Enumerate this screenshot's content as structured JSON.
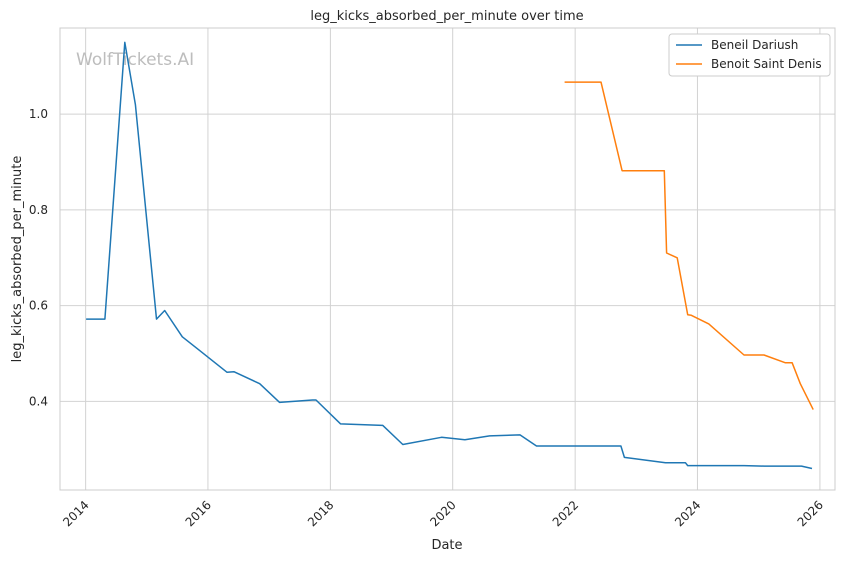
{
  "chart_data": {
    "type": "line",
    "title": "leg_kicks_absorbed_per_minute over time",
    "xlabel": "Date",
    "ylabel": "leg_kicks_absorbed_per_minute",
    "xlim": [
      "2013-08-01",
      "2026-04-01"
    ],
    "ylim": [
      0.215,
      1.18
    ],
    "x_ticks": [
      "2014",
      "2016",
      "2018",
      "2020",
      "2022",
      "2024",
      "2026"
    ],
    "y_ticks": [
      0.4,
      0.6,
      0.8,
      1.0
    ],
    "y_tick_labels": [
      "0.4",
      "0.6",
      "0.8",
      "1.0"
    ],
    "grid": true,
    "legend_position": "top-right",
    "watermark": "WolfTickets.AI",
    "series": [
      {
        "name": "Beneil Dariush",
        "color": "#1f77b4",
        "points": [
          [
            "2014-01-04",
            0.572
          ],
          [
            "2014-04-26",
            0.572
          ],
          [
            "2014-08-23",
            1.15
          ],
          [
            "2014-10-25",
            1.02
          ],
          [
            "2015-02-28",
            0.572
          ],
          [
            "2015-04-18",
            0.59
          ],
          [
            "2015-08-01",
            0.535
          ],
          [
            "2015-10-31",
            0.51
          ],
          [
            "2016-04-23",
            0.461
          ],
          [
            "2016-06-04",
            0.462
          ],
          [
            "2016-11-05",
            0.437
          ],
          [
            "2017-03-04",
            0.398
          ],
          [
            "2017-09-16",
            0.403
          ],
          [
            "2017-10-07",
            0.403
          ],
          [
            "2018-03-03",
            0.353
          ],
          [
            "2018-11-10",
            0.35
          ],
          [
            "2019-03-09",
            0.31
          ],
          [
            "2019-10-26",
            0.325
          ],
          [
            "2020-03-14",
            0.32
          ],
          [
            "2020-08-08",
            0.328
          ],
          [
            "2021-02-06",
            0.33
          ],
          [
            "2021-05-15",
            0.307
          ],
          [
            "2022-10-01",
            0.307
          ],
          [
            "2022-10-22",
            0.283
          ],
          [
            "2023-06-24",
            0.272
          ],
          [
            "2023-10-21",
            0.272
          ],
          [
            "2023-11-04",
            0.266
          ],
          [
            "2024-10-05",
            0.266
          ],
          [
            "2025-02-01",
            0.265
          ],
          [
            "2025-09-13",
            0.265
          ],
          [
            "2025-11-15",
            0.26
          ]
        ]
      },
      {
        "name": "Benoit Saint Denis",
        "color": "#ff7f0e",
        "points": [
          [
            "2021-10-30",
            1.067
          ],
          [
            "2022-06-04",
            1.067
          ],
          [
            "2022-10-08",
            0.882
          ],
          [
            "2023-06-17",
            0.882
          ],
          [
            "2023-07-01",
            0.71
          ],
          [
            "2023-09-02",
            0.7
          ],
          [
            "2023-11-04",
            0.581
          ],
          [
            "2023-11-25",
            0.58
          ],
          [
            "2024-03-09",
            0.562
          ],
          [
            "2024-10-05",
            0.497
          ],
          [
            "2025-02-01",
            0.497
          ],
          [
            "2025-06-07",
            0.481
          ],
          [
            "2025-07-19",
            0.481
          ],
          [
            "2025-09-06",
            0.437
          ],
          [
            "2025-11-22",
            0.383
          ]
        ]
      }
    ]
  }
}
